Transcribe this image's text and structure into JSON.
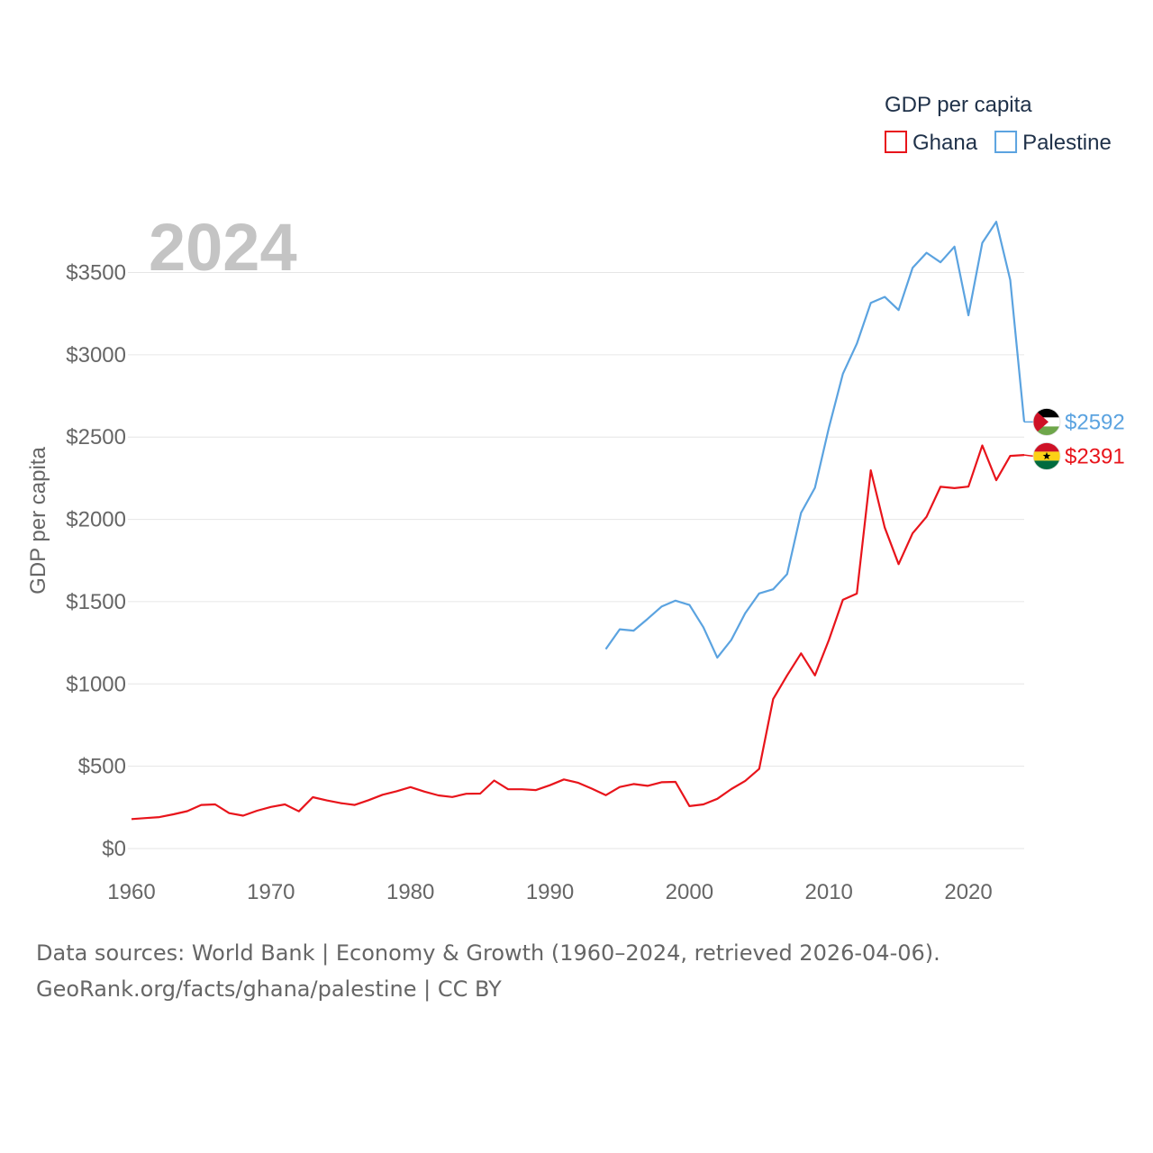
{
  "chart_data": {
    "type": "line",
    "legend_title": "GDP per capita",
    "legend_position": "top-right",
    "year_label": "2024",
    "ylabel": "GDP per capita",
    "xlabel": "",
    "xlim": [
      1960,
      2024
    ],
    "ylim": [
      0,
      3800
    ],
    "x_ticks": [
      1960,
      1970,
      1980,
      1990,
      2000,
      2010,
      2020
    ],
    "x_tick_labels": [
      "1960",
      "1970",
      "1980",
      "1990",
      "2000",
      "2010",
      "2020"
    ],
    "y_ticks": [
      0,
      500,
      1000,
      1500,
      2000,
      2500,
      3000,
      3500
    ],
    "y_tick_labels": [
      "$0",
      "$500",
      "$1000",
      "$1500",
      "$2000",
      "$2500",
      "$3000",
      "$3500"
    ],
    "grid": true,
    "series": [
      {
        "name": "Ghana",
        "color": "#e8141b",
        "end_label": "$2391",
        "flag": "ghana",
        "points": [
          [
            1960,
            179
          ],
          [
            1961,
            185
          ],
          [
            1962,
            191
          ],
          [
            1963,
            208
          ],
          [
            1964,
            227
          ],
          [
            1965,
            265
          ],
          [
            1966,
            268
          ],
          [
            1967,
            215
          ],
          [
            1968,
            200
          ],
          [
            1969,
            230
          ],
          [
            1970,
            253
          ],
          [
            1971,
            268
          ],
          [
            1972,
            226
          ],
          [
            1973,
            312
          ],
          [
            1974,
            292
          ],
          [
            1975,
            276
          ],
          [
            1976,
            265
          ],
          [
            1977,
            294
          ],
          [
            1978,
            327
          ],
          [
            1979,
            348
          ],
          [
            1980,
            373
          ],
          [
            1981,
            346
          ],
          [
            1982,
            323
          ],
          [
            1983,
            313
          ],
          [
            1984,
            333
          ],
          [
            1985,
            334
          ],
          [
            1986,
            413
          ],
          [
            1987,
            360
          ],
          [
            1988,
            360
          ],
          [
            1989,
            355
          ],
          [
            1990,
            385
          ],
          [
            1991,
            420
          ],
          [
            1992,
            400
          ],
          [
            1993,
            364
          ],
          [
            1994,
            324
          ],
          [
            1995,
            374
          ],
          [
            1996,
            392
          ],
          [
            1997,
            381
          ],
          [
            1998,
            403
          ],
          [
            1999,
            405
          ],
          [
            2000,
            258
          ],
          [
            2001,
            268
          ],
          [
            2002,
            302
          ],
          [
            2003,
            361
          ],
          [
            2004,
            411
          ],
          [
            2005,
            484
          ],
          [
            2006,
            908
          ],
          [
            2007,
            1052
          ],
          [
            2008,
            1186
          ],
          [
            2009,
            1052
          ],
          [
            2010,
            1267
          ],
          [
            2011,
            1511
          ],
          [
            2012,
            1549
          ],
          [
            2013,
            2298
          ],
          [
            2014,
            1950
          ],
          [
            2015,
            1728
          ],
          [
            2016,
            1915
          ],
          [
            2017,
            2016
          ],
          [
            2018,
            2198
          ],
          [
            2019,
            2190
          ],
          [
            2020,
            2199
          ],
          [
            2021,
            2449
          ],
          [
            2022,
            2238
          ],
          [
            2023,
            2386
          ],
          [
            2024,
            2391
          ]
        ]
      },
      {
        "name": "Palestine",
        "color": "#5ba3e0",
        "end_label": "$2592",
        "flag": "palestine",
        "points": [
          [
            1994,
            1212
          ],
          [
            1995,
            1332
          ],
          [
            1996,
            1324
          ],
          [
            1997,
            1395
          ],
          [
            1998,
            1470
          ],
          [
            1999,
            1506
          ],
          [
            2000,
            1480
          ],
          [
            2001,
            1344
          ],
          [
            2002,
            1160
          ],
          [
            2003,
            1267
          ],
          [
            2004,
            1430
          ],
          [
            2005,
            1550
          ],
          [
            2006,
            1575
          ],
          [
            2007,
            1667
          ],
          [
            2008,
            2040
          ],
          [
            2009,
            2192
          ],
          [
            2010,
            2557
          ],
          [
            2011,
            2884
          ],
          [
            2012,
            3067
          ],
          [
            2013,
            3315
          ],
          [
            2014,
            3352
          ],
          [
            2015,
            3272
          ],
          [
            2016,
            3528
          ],
          [
            2017,
            3620
          ],
          [
            2018,
            3562
          ],
          [
            2019,
            3657
          ],
          [
            2020,
            3240
          ],
          [
            2021,
            3680
          ],
          [
            2022,
            3808
          ],
          [
            2023,
            3455
          ],
          [
            2024,
            2592
          ]
        ]
      }
    ]
  },
  "sources": {
    "line1": "Data sources: World Bank | Economy & Growth (1960–2024, retrieved 2026-04-06).",
    "line2": "GeoRank.org/facts/ghana/palestine | CC BY"
  }
}
